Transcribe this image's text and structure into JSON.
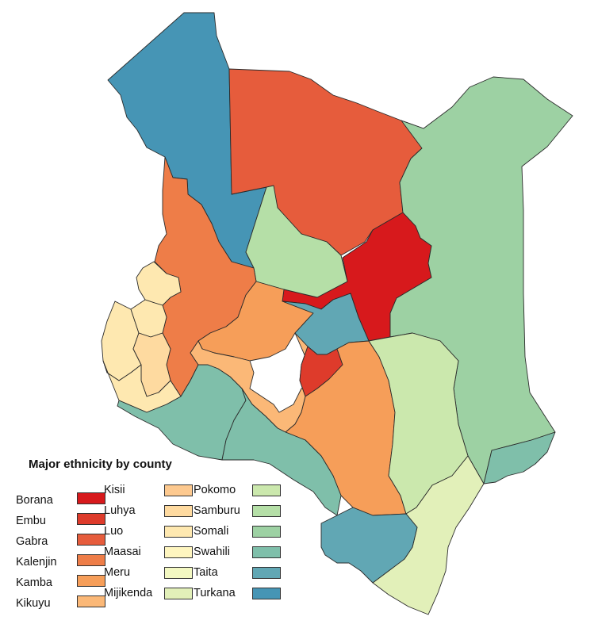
{
  "legend": {
    "title": "Major ethnicity by county",
    "labels_col1": [
      "Borana",
      "Embu",
      "Gabra",
      "Kalenjin",
      "Kamba",
      "Kikuyu"
    ],
    "labels_col2": [
      "Kisii",
      "Luhya",
      "Luo",
      "Maasai",
      "Meru",
      "Mijikenda"
    ],
    "labels_col3": [
      "Pokomo",
      "Samburu",
      "Somali",
      "Swahili",
      "Taita",
      "Turkana"
    ]
  },
  "colors": {
    "Borana": "#d7191c",
    "Embu": "#de3b2b",
    "Gabra": "#e65c3c",
    "Kalenjin": "#ee7d48",
    "Kamba": "#f69e59",
    "Kikuyu": "#fbb877",
    "Kisii": "#fdc98f",
    "Luhya": "#fedaa0",
    "Luo": "#fee8b0",
    "Maasai": "#fef5bf",
    "Meru": "#f3f8c2",
    "Mijikenda": "#e2f0b9",
    "Pokomo": "#cbe8ad",
    "Samburu": "#b5dfa7",
    "Somali": "#9dd1a3",
    "Swahili": "#7fbfaa",
    "Taita": "#61a7b4",
    "Turkana": "#4695b5"
  }
}
